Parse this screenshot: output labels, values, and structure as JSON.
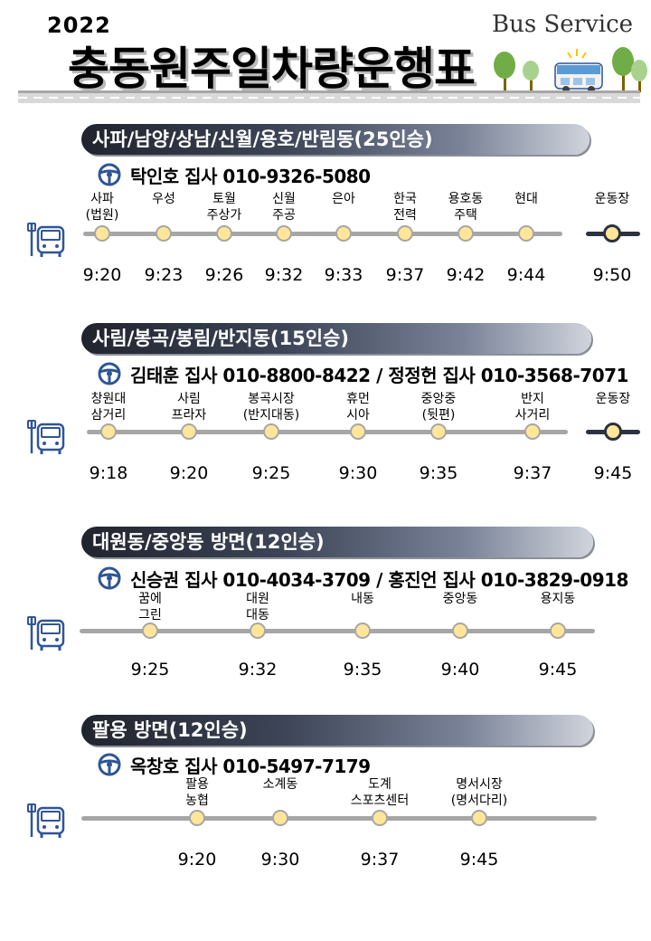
{
  "header": {
    "year": "2022",
    "title": "충동원주일차량운행표",
    "subtitle": "Bus Service"
  },
  "colors": {
    "dot_fill": "#ffe699",
    "line_gray": "#a6a6a6",
    "line_dark": "#2b3242",
    "icon_blue": "#2f5597"
  },
  "routes": [
    {
      "banner": "사파/남양/상남/신월/용호/반림동(25인승)",
      "driver": "탁인호 집사 010-9326-5080",
      "stops": [
        {
          "name": "사파\n(법원)",
          "time": "9:20"
        },
        {
          "name": "우성",
          "time": "9:23"
        },
        {
          "name": "토월\n주상가",
          "time": "9:26"
        },
        {
          "name": "신월\n주공",
          "time": "9:32"
        },
        {
          "name": "은아",
          "time": "9:33"
        },
        {
          "name": "한국\n전력",
          "time": "9:37"
        },
        {
          "name": "용호동\n주택",
          "time": "9:42"
        },
        {
          "name": "현대",
          "time": "9:44"
        }
      ],
      "final": {
        "name": "운동장",
        "time": "9:50"
      }
    },
    {
      "banner": "사림/봉곡/봉림/반지동(15인승)",
      "driver": "김태훈 집사 010-8800-8422 / 정정헌 집사 010-3568-7071",
      "stops": [
        {
          "name": "창원대\n삼거리",
          "time": "9:18"
        },
        {
          "name": "사림\n프라자",
          "time": "9:20"
        },
        {
          "name": "봉곡시장\n(반지대동)",
          "time": "9:25"
        },
        {
          "name": "휴먼\n시아",
          "time": "9:30"
        },
        {
          "name": "중앙중\n(뒷편)",
          "time": "9:35"
        },
        {
          "name": "반지\n사거리",
          "time": "9:37"
        }
      ],
      "final": {
        "name": "운동장",
        "time": "9:45"
      }
    },
    {
      "banner": "대원동/중앙동 방면(12인승)",
      "driver": "신승권 집사 010-4034-3709 / 홍진언 집사 010-3829-0918",
      "stops": [
        {
          "name": "꿈에\n그린",
          "time": "9:25"
        },
        {
          "name": "대원\n대동",
          "time": "9:32"
        },
        {
          "name": "내동",
          "time": "9:35"
        },
        {
          "name": "중앙동",
          "time": "9:40"
        },
        {
          "name": "용지동",
          "time": "9:45"
        }
      ]
    },
    {
      "banner": "팔용 방면(12인승)",
      "driver": "옥창호 집사 010-5497-7179",
      "stops": [
        {
          "name": "팔용\n농협",
          "time": "9:20"
        },
        {
          "name": "소계동",
          "time": "9:30"
        },
        {
          "name": "도계\n스포츠센터",
          "time": "9:37"
        },
        {
          "name": "명서시장\n(명서다리)",
          "time": "9:45"
        }
      ]
    }
  ]
}
